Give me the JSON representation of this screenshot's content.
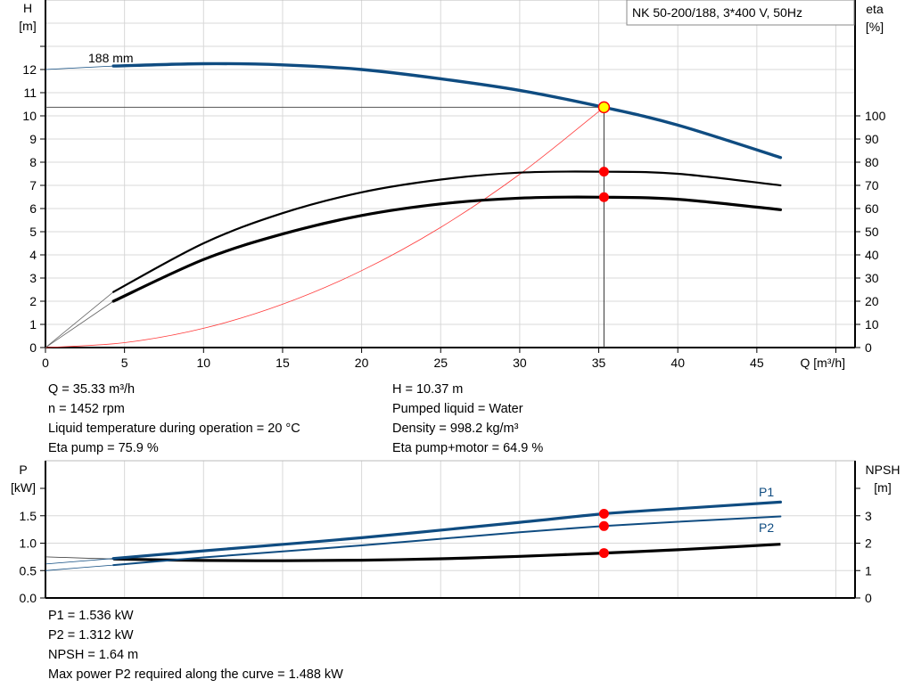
{
  "chart_data": [
    {
      "type": "line",
      "title": "NK 50-200/188, 3*400 V, 50Hz",
      "xlabel": "Q [m³/h]",
      "ylabel_left": [
        "H",
        "[m]"
      ],
      "ylabel_right": [
        "eta",
        "[%]"
      ],
      "xlim": [
        0,
        51
      ],
      "ylim_left": [
        0,
        15
      ],
      "ylim_right_eta": [
        0,
        150
      ],
      "x_ticks": [
        "0",
        "5",
        "10",
        "15",
        "20",
        "25",
        "30",
        "35",
        "40",
        "45"
      ],
      "y_ticks_left": [
        "0",
        "1",
        "2",
        "3",
        "4",
        "5",
        "6",
        "7",
        "8",
        "9",
        "10",
        "11",
        "12"
      ],
      "y_ticks_right": [
        "0",
        "10",
        "20",
        "30",
        "40",
        "50",
        "60",
        "70",
        "80",
        "90",
        "100"
      ],
      "grid": true,
      "curve_label": "188 mm",
      "series": [
        {
          "key": "H",
          "axis": "left",
          "color": "#0f4c81",
          "x": [
            0,
            4.3,
            10,
            15,
            20,
            25,
            30,
            35.33,
            40,
            46.5
          ],
          "y": [
            12.0,
            12.15,
            12.25,
            12.2,
            12.0,
            11.6,
            11.1,
            10.37,
            9.6,
            8.2
          ],
          "thin_until": 4.3
        },
        {
          "key": "eta_pump",
          "axis": "right",
          "color": "#000000",
          "x": [
            0,
            4.3,
            10,
            15,
            20,
            25,
            30,
            35.33,
            40,
            46.5
          ],
          "y": [
            0,
            24,
            45,
            58,
            67,
            72.5,
            75.5,
            75.9,
            75,
            70
          ],
          "thin_until": 4.3
        },
        {
          "key": "eta_pump_motor",
          "axis": "right",
          "color": "#000000",
          "x": [
            0,
            4.3,
            10,
            15,
            20,
            25,
            30,
            35.33,
            40,
            46.5
          ],
          "y": [
            0,
            20,
            38,
            49,
            57,
            62,
            64.5,
            64.9,
            64,
            59.5
          ],
          "thin_until": 4.3
        },
        {
          "key": "system",
          "axis": "left",
          "color": "#ff3b3b",
          "x": [
            0,
            5,
            10,
            15,
            20,
            25,
            30,
            35.33
          ],
          "y": [
            0,
            0.21,
            0.83,
            1.87,
            3.32,
            5.19,
            7.48,
            10.37
          ]
        }
      ],
      "operating_point": {
        "Q": 35.33,
        "H": 10.37,
        "eta_pump": 75.9,
        "eta_pump_motor": 64.9
      }
    },
    {
      "type": "line",
      "xlim": [
        0,
        51
      ],
      "ylabel_left": [
        "P",
        "[kW]"
      ],
      "ylabel_right": [
        "NPSH",
        "[m]"
      ],
      "ylim_left": [
        0,
        2.0
      ],
      "ylim_right": [
        0,
        4
      ],
      "y_ticks_left": [
        "0.0",
        "0.5",
        "1.0",
        "1.5"
      ],
      "y_ticks_right": [
        "0",
        "1",
        "2",
        "3"
      ],
      "grid": true,
      "series": [
        {
          "key": "P1",
          "name": "P1",
          "axis": "left",
          "color": "#0f4c81",
          "x": [
            0,
            4.3,
            10,
            20,
            30,
            35.33,
            40,
            46.5
          ],
          "y": [
            0.62,
            0.72,
            0.86,
            1.1,
            1.38,
            1.536,
            1.63,
            1.75
          ],
          "thin_until": 4.3
        },
        {
          "key": "P2",
          "name": "P2",
          "axis": "left",
          "color": "#0f4c81",
          "x": [
            0,
            4.3,
            10,
            20,
            30,
            35.33,
            40,
            46.5
          ],
          "y": [
            0.5,
            0.6,
            0.74,
            0.96,
            1.2,
            1.312,
            1.39,
            1.488
          ],
          "thin_until": 4.3
        },
        {
          "key": "NPSH",
          "axis": "right",
          "color": "#000000",
          "x": [
            0,
            4.3,
            10,
            15,
            20,
            25,
            30,
            35.33,
            40,
            46.5
          ],
          "y": [
            1.5,
            1.42,
            1.37,
            1.36,
            1.38,
            1.43,
            1.52,
            1.64,
            1.76,
            1.96
          ],
          "thin_until": 4.3
        }
      ],
      "operating_point": {
        "Q": 35.33,
        "P1": 1.536,
        "P2": 1.312,
        "NPSH": 1.64
      }
    }
  ],
  "info_top_left": [
    "Q = 35.33 m³/h",
    "n = 1452 rpm",
    "Liquid temperature during operation = 20 °C",
    "Eta pump = 75.9 %"
  ],
  "info_top_right": [
    "H = 10.37 m",
    "Pumped liquid = Water",
    "Density = 998.2 kg/m³",
    "Eta pump+motor = 64.9 %"
  ],
  "info_bottom": [
    "P1 = 1.536 kW",
    "P2 = 1.312 kW",
    "NPSH = 1.64 m",
    "Max power P2 required along the curve = 1.488 kW"
  ]
}
